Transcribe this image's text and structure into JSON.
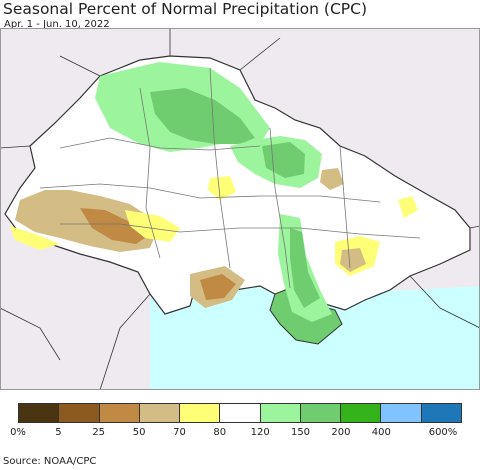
{
  "title": "Seasonal Percent of Normal Precipitation (CPC)",
  "subtitle": "Apr. 1 - Jun. 10, 2022",
  "source": "Source: NOAA/CPC",
  "legend": {
    "labels": [
      "0%",
      "5",
      "25",
      "50",
      "70",
      "80",
      "120",
      "150",
      "200",
      "400",
      "600%"
    ],
    "colors": [
      "#4a3512",
      "#8c5a1e",
      "#c08a45",
      "#d4bd84",
      "#ffff77",
      "#ffffff",
      "#9cf59c",
      "#6fcd6f",
      "#33b319",
      "#7fc4ff",
      "#1e78b8"
    ]
  },
  "map": {
    "colors": {
      "background": "#efeaef",
      "land": "#ffffff",
      "sea": "#ccffff",
      "border": "#333333",
      "oblast_border": "#777777",
      "light_green": "#9cf59c",
      "green": "#6fcd6f",
      "yellow": "#ffff77",
      "tan": "#d4bd84",
      "brown": "#c08a45"
    }
  }
}
